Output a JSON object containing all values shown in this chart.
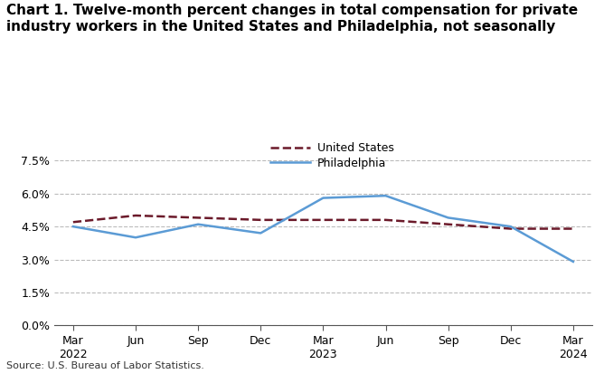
{
  "title": "Chart 1. Twelve-month percent changes in total compensation for private\nindustry workers in the United States and Philadelphia, not seasonally",
  "source": "Source: U.S. Bureau of Labor Statistics.",
  "x_labels": [
    "Mar\n2022",
    "Jun",
    "Sep",
    "Dec",
    "Mar\n2023",
    "Jun",
    "Sep",
    "Dec",
    "Mar\n2024"
  ],
  "us_values": [
    4.7,
    5.0,
    4.9,
    4.8,
    4.8,
    4.8,
    4.6,
    4.4,
    4.4
  ],
  "philly_values": [
    4.5,
    4.0,
    4.6,
    4.2,
    5.8,
    5.9,
    4.9,
    4.5,
    2.9
  ],
  "us_color": "#6b1a2a",
  "philly_color": "#5b9bd5",
  "ylim": [
    0.0,
    8.0
  ],
  "yticks": [
    0.0,
    1.5,
    3.0,
    4.5,
    6.0,
    7.5
  ],
  "ytick_labels": [
    "0.0%",
    "1.5%",
    "3.0%",
    "4.5%",
    "6.0%",
    "7.5%"
  ],
  "legend_us": "United States",
  "legend_philly": "Philadelphia",
  "background_color": "#ffffff",
  "plot_bg_color": "#ffffff",
  "grid_color": "#bbbbbb"
}
